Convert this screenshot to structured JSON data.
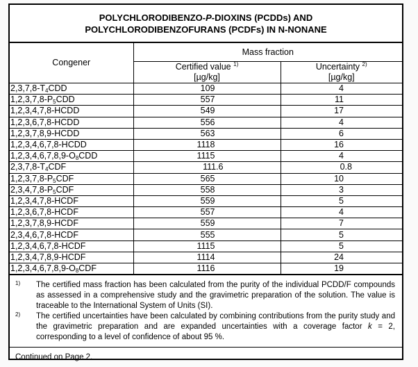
{
  "title": {
    "line1": "POLYCHLORODIBENZO-",
    "line1_italic": "P",
    "line1_rest": "-DIOXINS (PCDDs) AND",
    "line2": "POLYCHLORODIBENZOFURANS (PCDFs) IN N-NONANE"
  },
  "headers": {
    "congener": "Congener",
    "mass_fraction": "Mass fraction",
    "certified": "Certified value",
    "certified_note": "1)",
    "uncertainty": "Uncertainty",
    "uncertainty_note": "2)",
    "unit": "[µg/kg]"
  },
  "rows": [
    {
      "pre": "2,3,7,8-T",
      "sub": "4",
      "post": "CDD",
      "value": "109",
      "unc": "4"
    },
    {
      "pre": "1,2,3,7,8-P",
      "sub": "5",
      "post": "CDD",
      "value": "557",
      "unc": "11"
    },
    {
      "pre": "1,2,3,4,7,8-HCDD",
      "sub": "",
      "post": "",
      "value": "549",
      "unc": "17"
    },
    {
      "pre": "1,2,3,6,7,8-HCDD",
      "sub": "",
      "post": "",
      "value": "556",
      "unc": "4"
    },
    {
      "pre": "1,2,3,7,8,9-HCDD",
      "sub": "",
      "post": "",
      "value": "563",
      "unc": "6"
    },
    {
      "pre": "1,2,3,4,6,7,8-HCDD",
      "sub": "",
      "post": "",
      "value": "1118",
      "unc": "16"
    },
    {
      "pre": "1,2,3,4,6,7,8,9-O",
      "sub": "8",
      "post": "CDD",
      "value": "1115",
      "unc": "4"
    },
    {
      "pre": "2,3,7,8-T",
      "sub": "4",
      "post": "CDF",
      "value": "111.6",
      "unc": "0.8"
    },
    {
      "pre": "1,2,3,7,8-P",
      "sub": "5",
      "post": "CDF",
      "value": "565",
      "unc": "10"
    },
    {
      "pre": "2,3,4,7,8-P",
      "sub": "5",
      "post": "CDF",
      "value": "558",
      "unc": "3"
    },
    {
      "pre": "1,2,3,4,7,8-HCDF",
      "sub": "",
      "post": "",
      "value": "559",
      "unc": "5"
    },
    {
      "pre": "1,2,3,6,7,8-HCDF",
      "sub": "",
      "post": "",
      "value": "557",
      "unc": "4"
    },
    {
      "pre": "1,2,3,7,8,9-HCDF",
      "sub": "",
      "post": "",
      "value": "559",
      "unc": "7"
    },
    {
      "pre": "2,3,4,6,7,8-HCDF",
      "sub": "",
      "post": "",
      "value": "555",
      "unc": "5"
    },
    {
      "pre": "1,2,3,4,6,7,8-HCDF",
      "sub": "",
      "post": "",
      "value": "1115",
      "unc": "5"
    },
    {
      "pre": "1,2,3,4,7,8,9-HCDF",
      "sub": "",
      "post": "",
      "value": "1114",
      "unc": "24"
    },
    {
      "pre": "1,2,3,4,6,7,8,9-O",
      "sub": "8",
      "post": "CDF",
      "value": "1116",
      "unc": "19"
    }
  ],
  "footnotes": [
    {
      "marker": "1)",
      "text": "The certified mass fraction has been calculated from the purity of the individual PCDD/F compounds as assessed in a comprehensive study and the gravimetric preparation of the solution. The value is traceable to the International System of Units (SI)."
    },
    {
      "marker": "2)",
      "text_a": "The certified uncertainties have been calculated by combining contributions from the purity study and the gravimetric preparation and are expanded uncertainties with a coverage factor ",
      "k": "k",
      "text_b": " = 2, corresponding to a level of confidence of about 95 %."
    }
  ],
  "continued": "Continued on Page 2."
}
